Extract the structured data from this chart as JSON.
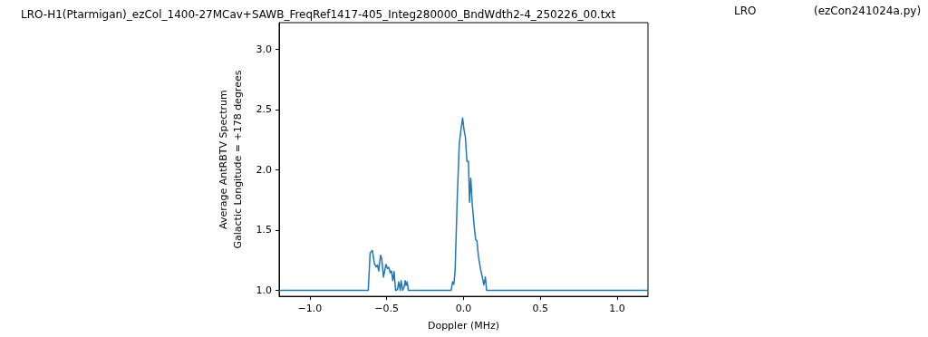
{
  "chart_data": {
    "type": "line",
    "title": "LRO-H1(Ptarmigan)_ezCol_1400-27MCav+SAWB_FreqRef1417-405_Integ280000_BndWdth2-4_250226_00.txt",
    "annotations": [
      "LRO",
      "(ezCon241024a.py)"
    ],
    "xlabel": "Doppler (MHz)",
    "ylabel": "Average AntRBTV Spectrum\nGalactic Longitude = +178 degrees",
    "xlim": [
      -1.2,
      1.2
    ],
    "ylim": [
      0.95,
      3.22
    ],
    "xticks": [
      {
        "value": -1,
        "label": "−1.0"
      },
      {
        "value": -0.5,
        "label": "−0.5"
      },
      {
        "value": 0,
        "label": "0.0"
      },
      {
        "value": 0.5,
        "label": "0.5"
      },
      {
        "value": 1,
        "label": "1.0"
      }
    ],
    "yticks": [
      {
        "value": 1,
        "label": "1.0"
      },
      {
        "value": 1.5,
        "label": "1.5"
      },
      {
        "value": 2,
        "label": "2.0"
      },
      {
        "value": 2.5,
        "label": "2.5"
      },
      {
        "value": 3,
        "label": "3.0"
      }
    ],
    "grid": false,
    "marker": "none",
    "line_style": "solid",
    "series": [
      {
        "color": "#1f77b4",
        "x": [
          -1.2,
          -0.62,
          -0.608,
          -0.593,
          -0.58,
          -0.568,
          -0.56,
          -0.552,
          -0.54,
          -0.532,
          -0.521,
          -0.505,
          -0.495,
          -0.486,
          -0.477,
          -0.469,
          -0.46,
          -0.452,
          -0.442,
          -0.43,
          -0.422,
          -0.412,
          -0.406,
          -0.396,
          -0.386,
          -0.38,
          -0.374,
          -0.367,
          -0.359,
          -0.081,
          -0.071,
          -0.063,
          -0.055,
          -0.041,
          -0.028,
          -0.016,
          -0.006,
          0.002,
          0.012,
          0.022,
          0.032,
          0.039,
          0.047,
          0.057,
          0.071,
          0.079,
          0.087,
          0.097,
          0.11,
          0.122,
          0.132,
          0.142,
          0.15,
          1.2
        ],
        "values": [
          1,
          1,
          1.31,
          1.33,
          1.22,
          1.195,
          1.21,
          1.16,
          1.29,
          1.26,
          1.11,
          1.215,
          1.18,
          1.19,
          1.145,
          1.16,
          1.08,
          1.155,
          1,
          1.005,
          1.07,
          1,
          1.08,
          1,
          1.03,
          1.08,
          1.04,
          1.07,
          1,
          1,
          1.07,
          1.05,
          1.16,
          1.76,
          2.21,
          2.34,
          2.43,
          2.34,
          2.27,
          2.07,
          2.07,
          1.73,
          1.93,
          1.71,
          1.51,
          1.42,
          1.41,
          1.28,
          1.18,
          1.11,
          1.045,
          1.11,
          1,
          1
        ]
      }
    ]
  }
}
